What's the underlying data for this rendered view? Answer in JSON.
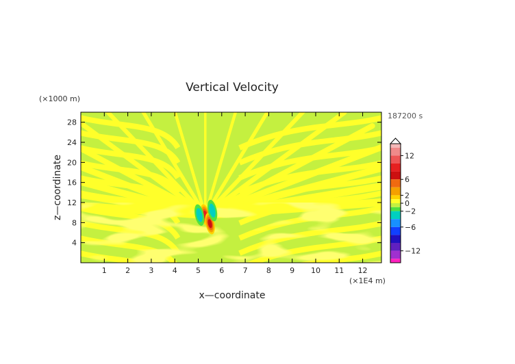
{
  "chart_data": {
    "type": "heatmap",
    "title": "Vertical Velocity",
    "xlabel": "x—coordinate",
    "ylabel": "z—coordinate",
    "x_unit": "(×1E4 m)",
    "y_unit": "(×1000 m)",
    "time_label": "187200 s",
    "xlim": [
      0,
      12.8
    ],
    "ylim": [
      0,
      30
    ],
    "x_ticks": [
      1,
      2,
      3,
      4,
      5,
      6,
      7,
      8,
      9,
      10,
      11,
      12
    ],
    "y_ticks": [
      4,
      8,
      12,
      16,
      20,
      24,
      28
    ],
    "colorbar": {
      "min": -15,
      "max": 15,
      "tick_values": [
        12,
        6,
        2,
        0,
        -2,
        -6,
        -12
      ],
      "tick_labels": [
        "12",
        "6",
        "2",
        "0",
        "−2",
        "−6",
        "−12"
      ],
      "colors": [
        {
          "from": 14,
          "to": 15,
          "color": "#f4b8b8"
        },
        {
          "from": 12,
          "to": 14,
          "color": "#f08a8a"
        },
        {
          "from": 10,
          "to": 12,
          "color": "#ee5555"
        },
        {
          "from": 8,
          "to": 10,
          "color": "#e62020"
        },
        {
          "from": 6,
          "to": 8,
          "color": "#cc1010"
        },
        {
          "from": 4,
          "to": 6,
          "color": "#f06a10"
        },
        {
          "from": 2,
          "to": 4,
          "color": "#f5a000"
        },
        {
          "from": 1,
          "to": 2,
          "color": "#ffd200"
        },
        {
          "from": 0,
          "to": 1,
          "color": "#ffff2a"
        },
        {
          "from": -1,
          "to": 0,
          "color": "#c4f040"
        },
        {
          "from": -2,
          "to": -1,
          "color": "#50e040"
        },
        {
          "from": -4,
          "to": -2,
          "color": "#00d0c0"
        },
        {
          "from": -6,
          "to": -4,
          "color": "#1890ff"
        },
        {
          "from": -8,
          "to": -6,
          "color": "#1040ff"
        },
        {
          "from": -10,
          "to": -8,
          "color": "#2010c0"
        },
        {
          "from": -12,
          "to": -10,
          "color": "#6020c0"
        },
        {
          "from": -14,
          "to": -12,
          "color": "#a030d0"
        },
        {
          "from": -15,
          "to": -14,
          "color": "#ff20c0"
        }
      ]
    },
    "background_value": -0.5,
    "positive_band_value": 0.5,
    "features": [
      {
        "kind": "updraft",
        "x": 5.3,
        "z": 9.5,
        "peak": 9
      },
      {
        "kind": "updraft",
        "x": 5.5,
        "z": 7.8,
        "peak": 7
      },
      {
        "kind": "downdraft",
        "x": 5.05,
        "z": 9.5,
        "peak": -3
      },
      {
        "kind": "downdraft",
        "x": 5.6,
        "z": 10.4,
        "peak": -3
      }
    ]
  }
}
